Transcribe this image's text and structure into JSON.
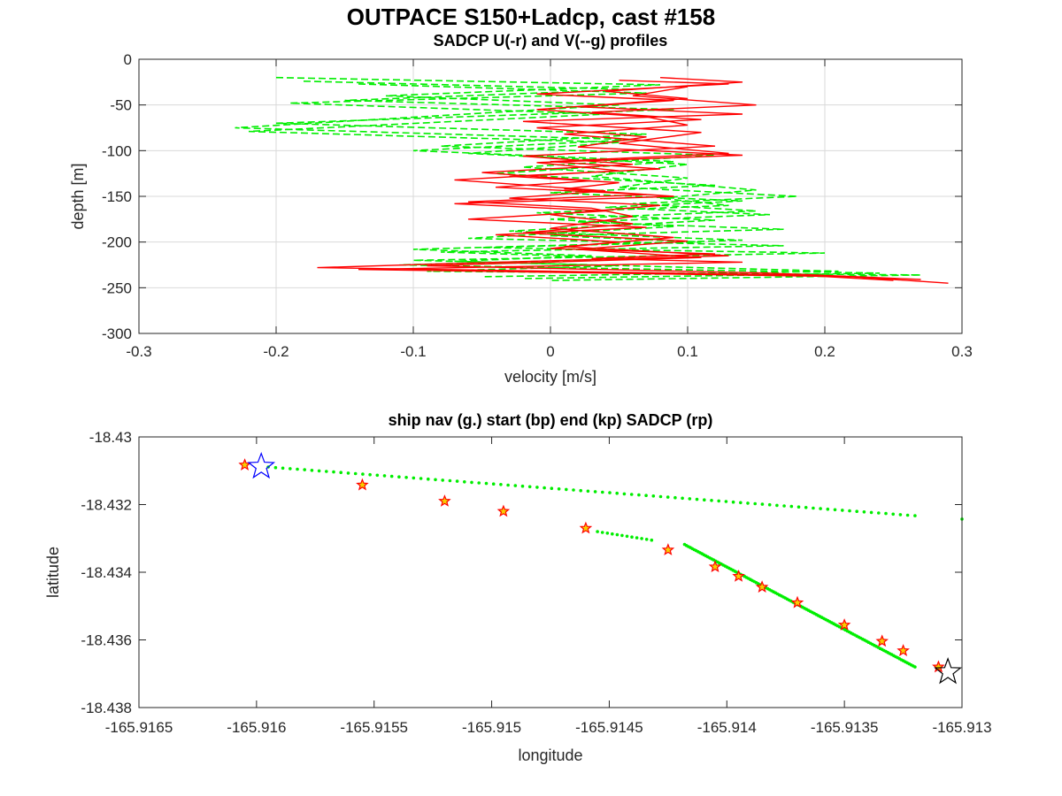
{
  "figure_title": "OUTPACE S150+Ladcp, cast #158",
  "chart_data": [
    {
      "type": "line",
      "title": "SADCP U(-r) and V(--g) profiles",
      "xlabel": "velocity [m/s]",
      "ylabel": "depth [m]",
      "xlim": [
        -0.3,
        0.3
      ],
      "ylim": [
        -300,
        0
      ],
      "xticks": [
        -0.3,
        -0.2,
        -0.1,
        0,
        0.1,
        0.2,
        0.3
      ],
      "xtick_labels": [
        "-0.3",
        "-0.2",
        "-0.1",
        "0",
        "0.1",
        "0.2",
        "0.3"
      ],
      "yticks": [
        -300,
        -250,
        -200,
        -150,
        -100,
        -50,
        0
      ],
      "ytick_labels": [
        "-300",
        "-250",
        "-200",
        "-150",
        "-100",
        "-50",
        "0"
      ],
      "grid": true,
      "series": [
        {
          "key": "U",
          "color": "#ff0000",
          "style": "solid",
          "profiles": [
            {
              "x": [
                0.05,
                0.13,
                -0.01,
                0.09,
                0.02,
                0.14,
                -0.02,
                0.11,
                0.05,
                0.13,
                0.0,
                0.08,
                -0.03,
                0.05,
                0.01,
                0.09,
                -0.07,
                0.04,
                -0.06,
                0.07,
                -0.04,
                0.05,
                0.0,
                0.12,
                0.03,
                0.14,
                -0.03,
                -0.14,
                0.22,
                0.29
              ],
              "y": [
                -23,
                -27,
                -38,
                -45,
                -52,
                -60,
                -68,
                -80,
                -92,
                -103,
                -112,
                -120,
                -128,
                -135,
                -142,
                -150,
                -158,
                -166,
                -175,
                -184,
                -192,
                -200,
                -207,
                -213,
                -218,
                -222,
                -227,
                -230,
                -238,
                -245
              ]
            },
            {
              "x": [
                0.08,
                0.14,
                0.04,
                0.1,
                -0.01,
                0.07,
                0.1,
                0.01,
                0.12,
                -0.02,
                0.06,
                -0.05,
                0.03,
                -0.04,
                0.07,
                -0.06,
                0.03,
                0.06,
                0.0,
                0.09,
                0.01,
                0.13,
                -0.06,
                -0.17,
                0.18,
                0.25
              ],
              "y": [
                -20,
                -25,
                -35,
                -43,
                -55,
                -63,
                -72,
                -82,
                -95,
                -106,
                -115,
                -124,
                -133,
                -140,
                -148,
                -156,
                -163,
                -172,
                -185,
                -195,
                -205,
                -215,
                -223,
                -228,
                -236,
                -242
              ]
            },
            {
              "x": [
                0.1,
                0.06,
                0.15,
                0.03,
                0.11,
                -0.01,
                0.07,
                0.02,
                0.14,
                -0.01,
                0.05,
                -0.07,
                0.04,
                -0.03,
                0.08,
                0.0,
                0.06,
                -0.02,
                0.1,
                0.02,
                0.11,
                -0.09,
                0.16,
                0.27
              ],
              "y": [
                -30,
                -40,
                -50,
                -58,
                -66,
                -75,
                -85,
                -96,
                -105,
                -113,
                -122,
                -132,
                -144,
                -152,
                -160,
                -170,
                -180,
                -190,
                -199,
                -208,
                -217,
                -226,
                -234,
                -241
              ]
            }
          ]
        },
        {
          "key": "V",
          "color": "#00ee00",
          "style": "dashed",
          "profiles": [
            {
              "x": [
                -0.2,
                0.08,
                -0.12,
                0.05,
                -0.23,
                0.06,
                -0.1,
                0.09,
                -0.04,
                0.12,
                0.0,
                0.14,
                0.04,
                0.16,
                0.02,
                0.17,
                0.0,
                0.11,
                -0.05,
                0.2,
                -0.1,
                0.05,
                -0.09,
                0.27,
                0.0
              ],
              "y": [
                -20,
                -28,
                -40,
                -50,
                -75,
                -88,
                -100,
                -112,
                -125,
                -138,
                -146,
                -155,
                -162,
                -170,
                -178,
                -186,
                -193,
                -200,
                -206,
                -212,
                -220,
                -226,
                -232,
                -236,
                -242
              ]
            },
            {
              "x": [
                -0.18,
                0.06,
                -0.15,
                0.09,
                -0.2,
                0.07,
                -0.08,
                0.12,
                -0.02,
                0.1,
                0.05,
                0.18,
                0.06,
                0.15,
                0.0,
                0.09,
                -0.06,
                0.17,
                -0.08,
                0.07,
                -0.11,
                0.24,
                -0.02
              ],
              "y": [
                -24,
                -33,
                -45,
                -55,
                -70,
                -82,
                -95,
                -105,
                -118,
                -130,
                -140,
                -150,
                -158,
                -166,
                -175,
                -183,
                -196,
                -204,
                -211,
                -218,
                -225,
                -234,
                -240
              ]
            },
            {
              "x": [
                -0.14,
                0.07,
                -0.19,
                0.04,
                -0.22,
                0.05,
                -0.06,
                0.1,
                0.03,
                0.15,
                0.08,
                0.13,
                -0.01,
                0.12,
                -0.03,
                0.14,
                -0.1,
                0.03,
                -0.07,
                0.21,
                -0.05
              ],
              "y": [
                -27,
                -37,
                -48,
                -60,
                -79,
                -91,
                -103,
                -115,
                -128,
                -143,
                -152,
                -160,
                -168,
                -176,
                -188,
                -198,
                -208,
                -215,
                -221,
                -232,
                -238
              ]
            }
          ]
        }
      ]
    },
    {
      "type": "scatter",
      "title": "ship nav (g.) start (bp) end (kp) SADCP (rp)",
      "xlabel": "longitude",
      "ylabel": "latitude",
      "xlim": [
        -165.9165,
        -165.913
      ],
      "ylim": [
        -18.438,
        -18.43
      ],
      "xticks": [
        -165.9165,
        -165.916,
        -165.9155,
        -165.915,
        -165.9145,
        -165.914,
        -165.9135,
        -165.913
      ],
      "xtick_labels": [
        "-165.9165",
        "-165.916",
        "-165.9155",
        "-165.915",
        "-165.9145",
        "-165.914",
        "-165.9135",
        "-165.913"
      ],
      "yticks": [
        -18.438,
        -18.436,
        -18.434,
        -18.432,
        -18.43
      ],
      "ytick_labels": [
        "-18.438",
        "-18.436",
        "-18.434",
        "-18.432",
        "-18.43"
      ],
      "grid": false,
      "nav_track": {
        "color": "#00ee00",
        "segments": [
          {
            "x0": -165.91595,
            "y0": -18.43089,
            "x1": -165.9132,
            "y1": -18.43233,
            "n": 90
          },
          {
            "x0": -165.913,
            "y0": -18.43243,
            "x1": -165.91302,
            "y1": -18.43243,
            "n": 1
          },
          {
            "x0": -165.91455,
            "y0": -18.4328,
            "x1": -165.91432,
            "y1": -18.43305,
            "n": 12
          },
          {
            "x0": -165.91418,
            "y0": -18.43318,
            "x1": -165.9132,
            "y1": -18.4368,
            "n": 120
          }
        ]
      },
      "track_points": {
        "color": "#ff0000",
        "fill": "#f5d000",
        "lon": [
          -165.91605,
          -165.91555,
          -165.9152,
          -165.91495,
          -165.9146,
          -165.91425,
          -165.91405,
          -165.91395,
          -165.91385,
          -165.9137,
          -165.9135,
          -165.91334,
          -165.91325,
          -165.9131
        ],
        "lat": [
          -18.43083,
          -18.43142,
          -18.4319,
          -18.4322,
          -18.4327,
          -18.43334,
          -18.43384,
          -18.43412,
          -18.43444,
          -18.4349,
          -18.43556,
          -18.43604,
          -18.43632,
          -18.4368
        ]
      },
      "start_point": {
        "lon": -165.91598,
        "lat": -18.43088,
        "color": "#0000ff"
      },
      "end_point": {
        "lon": -165.91306,
        "lat": -18.43695,
        "color": "#000000"
      }
    }
  ]
}
